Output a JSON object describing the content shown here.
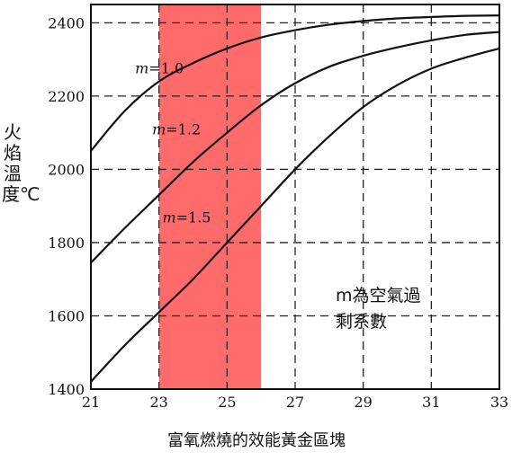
{
  "chart_data": {
    "type": "line",
    "xlabel": "富氧燃燒的效能黃金區塊",
    "ylabel": "火焰溫度℃",
    "xlim": [
      21,
      33
    ],
    "ylim": [
      1400,
      2450
    ],
    "xticks": [
      21,
      23,
      25,
      27,
      29,
      31,
      33
    ],
    "yticks": [
      1400,
      1600,
      1800,
      2000,
      2200,
      2400
    ],
    "grid": "dashed",
    "series": [
      {
        "name": "m=1.0",
        "m_symbol": "m",
        "m_value": "=1.0",
        "x": [
          21,
          22,
          23,
          24,
          25,
          26,
          27,
          28,
          29,
          30,
          31,
          32,
          33
        ],
        "y": [
          2050,
          2160,
          2240,
          2290,
          2330,
          2360,
          2380,
          2395,
          2405,
          2412,
          2416,
          2419,
          2420
        ]
      },
      {
        "name": "m=1.2",
        "m_symbol": "m",
        "m_value": "=1.2",
        "x": [
          21,
          22,
          23,
          24,
          25,
          26,
          27,
          28,
          29,
          30,
          31,
          32,
          33
        ],
        "y": [
          1745,
          1840,
          1930,
          2020,
          2100,
          2175,
          2235,
          2280,
          2310,
          2333,
          2352,
          2367,
          2375
        ]
      },
      {
        "name": "m=1.5",
        "m_symbol": "m",
        "m_value": "=1.5",
        "x": [
          21,
          22,
          23,
          24,
          25,
          26,
          27,
          28,
          29,
          30,
          31,
          32,
          33
        ],
        "y": [
          1420,
          1520,
          1610,
          1700,
          1800,
          1900,
          2000,
          2090,
          2170,
          2230,
          2275,
          2305,
          2330
        ]
      }
    ],
    "highlight": {
      "x_from": 23,
      "x_to": 26,
      "color": "#ff6b6b"
    },
    "annotation": [
      "m為空氣過",
      "剩系數"
    ]
  }
}
